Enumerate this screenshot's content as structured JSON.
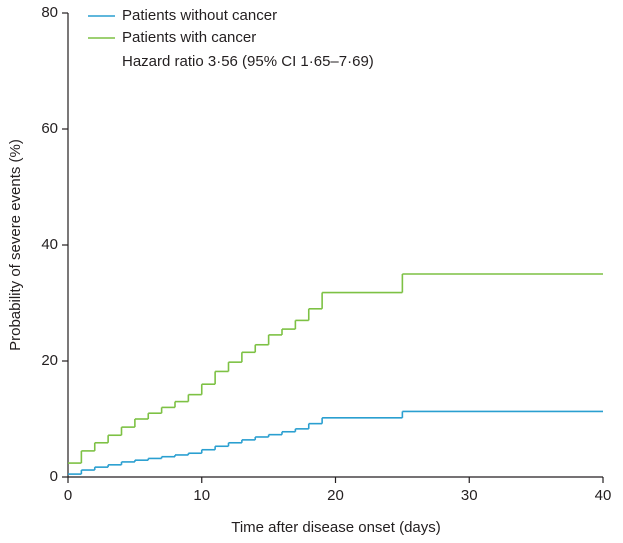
{
  "chart_data": {
    "type": "step",
    "xlabel": "Time after disease onset (days)",
    "ylabel": "Probability of severe events (%)",
    "annotation": "Hazard ratio 3·56 (95% CI 1·65–7·69)",
    "xlim": [
      0,
      40
    ],
    "xticks": [
      0,
      10,
      20,
      30,
      40
    ],
    "ylim": [
      0,
      80
    ],
    "yticks": [
      0,
      20,
      40,
      60,
      80
    ],
    "series": [
      {
        "name": "Patients without cancer",
        "color": "#2a9fd0",
        "x": [
          0,
          1,
          2,
          3,
          4,
          5,
          6,
          7,
          8,
          9,
          10,
          11,
          12,
          13,
          14,
          15,
          16,
          17,
          18,
          19,
          25
        ],
        "values": [
          0.5,
          1.2,
          1.7,
          2.1,
          2.6,
          2.9,
          3.2,
          3.5,
          3.8,
          4.1,
          4.7,
          5.3,
          5.9,
          6.4,
          6.9,
          7.3,
          7.8,
          8.3,
          9.2,
          10.2,
          11.3
        ]
      },
      {
        "name": "Patients with cancer",
        "color": "#7dc144",
        "x": [
          0,
          1,
          2,
          3,
          4,
          5,
          6,
          7,
          8,
          9,
          10,
          11,
          12,
          13,
          14,
          15,
          16,
          17,
          18,
          19,
          25
        ],
        "values": [
          2.4,
          4.5,
          5.9,
          7.2,
          8.6,
          10,
          11,
          12,
          13,
          14.2,
          16,
          18.2,
          19.8,
          21.5,
          22.8,
          24.5,
          25.5,
          27,
          29,
          31.8,
          35
        ]
      }
    ]
  }
}
